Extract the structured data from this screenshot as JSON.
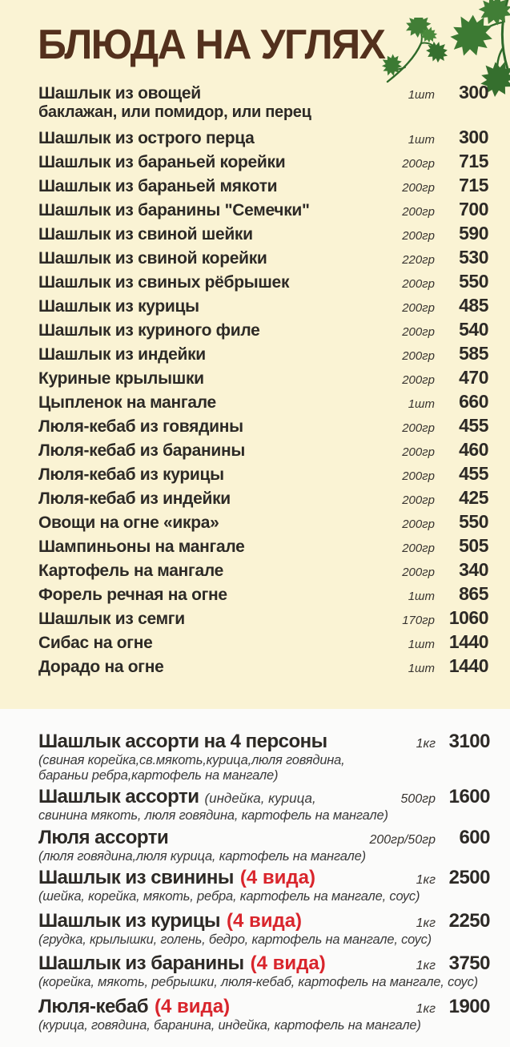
{
  "page": {
    "title": "БЛЮДА НА УГЛЯХ",
    "colors": {
      "background_top": "#faf3d4",
      "background_bottom": "#fbfbfa",
      "title": "#53301d",
      "text": "#2d2a26",
      "accent_red": "#d9252c",
      "leaf_green": "#3e7b35"
    },
    "decor": {
      "leaf_icon": "parsley-leaf-icon"
    }
  },
  "sections": [
    {
      "name": "main",
      "items": [
        {
          "name": "Шашлык из овощей",
          "sub": "баклажан, или помидор, или перец",
          "weight": "1шт",
          "price": "300"
        },
        {
          "name": "Шашлык из острого перца",
          "weight": "1шт",
          "price": "300"
        },
        {
          "name": "Шашлык из бараньей корейки",
          "weight": "200гр",
          "price": "715"
        },
        {
          "name": "Шашлык из бараньей мякоти",
          "weight": "200гр",
          "price": "715"
        },
        {
          "name": "Шашлык из баранины \"Семечки\"",
          "weight": "200гр",
          "price": "700"
        },
        {
          "name": "Шашлык из свиной шейки",
          "weight": "200гр",
          "price": "590"
        },
        {
          "name": "Шашлык из свиной корейки",
          "weight": "220гр",
          "price": "530"
        },
        {
          "name": "Шашлык из свиных рёбрышек",
          "weight": "200гр",
          "price": "550"
        },
        {
          "name": "Шашлык из курицы",
          "weight": "200гр",
          "price": "485"
        },
        {
          "name": "Шашлык из куриного филе",
          "weight": "200гр",
          "price": "540"
        },
        {
          "name": "Шашлык из индейки",
          "weight": "200гр",
          "price": "585"
        },
        {
          "name": "Куриные крылышки",
          "weight": "200гр",
          "price": "470"
        },
        {
          "name": "Цыпленок на мангале",
          "weight": "1шт",
          "price": "660"
        },
        {
          "name": "Люля-кебаб из говядины",
          "weight": "200гр",
          "price": "455"
        },
        {
          "name": "Люля-кебаб из баранины",
          "weight": "200гр",
          "price": "460"
        },
        {
          "name": "Люля-кебаб из курицы",
          "weight": "200гр",
          "price": "455"
        },
        {
          "name": "Люля-кебаб из индейки",
          "weight": "200гр",
          "price": "425"
        },
        {
          "name": "Овощи на огне «икра»",
          "weight": "200гр",
          "price": "550"
        },
        {
          "name": "Шампиньоны на мангале",
          "weight": "200гр",
          "price": "505"
        },
        {
          "name": "Картофель на мангале",
          "weight": "200гр",
          "price": "340"
        },
        {
          "name": "Форель речная на огне",
          "weight": "1шт",
          "price": "865"
        },
        {
          "name": "Шашлык из семги",
          "weight": "170гр",
          "price": "1060"
        },
        {
          "name": "Сибас на огне",
          "weight": "1шт",
          "price": "1440"
        },
        {
          "name": "Дорадо на огне",
          "weight": "1шт",
          "price": "1440"
        }
      ]
    },
    {
      "name": "combos",
      "items": [
        {
          "name": "Шашлык ассорти на 4 персоны",
          "desc_lines": [
            "(свиная корейка,св.мякоть,курица,люля говядина,",
            "бараньи ребра,картофель на мангале)"
          ],
          "weight": "1кг",
          "price": "3100"
        },
        {
          "name": "Шашлык ассорти",
          "inline_desc": "(индейка, курица,",
          "desc_lines": [
            "свинина мякоть, люля говядина, картофель на мангале)"
          ],
          "weight": "500гр",
          "price": "1600"
        },
        {
          "name": "Люля ассорти",
          "desc_lines": [
            "(люля говядина,люля курица, картофель на мангале)"
          ],
          "weight": "200гр/50гр",
          "price": "600"
        },
        {
          "name": "Шашлык из свинины",
          "red": "(4 вида)",
          "desc_lines": [
            "(шейка, корейка, мякоть, ребра, картофель на мангале, соус)"
          ],
          "weight": "1кг",
          "price": "2500"
        },
        {
          "name": "Шашлык из курицы",
          "red": "(4 вида)",
          "desc_lines": [
            "(грудка, крылышки, голень, бедро, картофель на мангале, соус)"
          ],
          "weight": "1кг",
          "price": "2250"
        },
        {
          "name": "Шашлык из баранины",
          "red": "(4 вида)",
          "desc_lines": [
            "(корейка, мякоть, ребрышки, люля-кебаб, картофель на мангале, соус)"
          ],
          "weight": "1кг",
          "price": "3750"
        },
        {
          "name": "Люля-кебаб",
          "red": "(4 вида)",
          "desc_lines": [
            "(курица, говядина, баранина, индейка, картофель на мангале)"
          ],
          "weight": "1кг",
          "price": "1900"
        }
      ]
    }
  ]
}
